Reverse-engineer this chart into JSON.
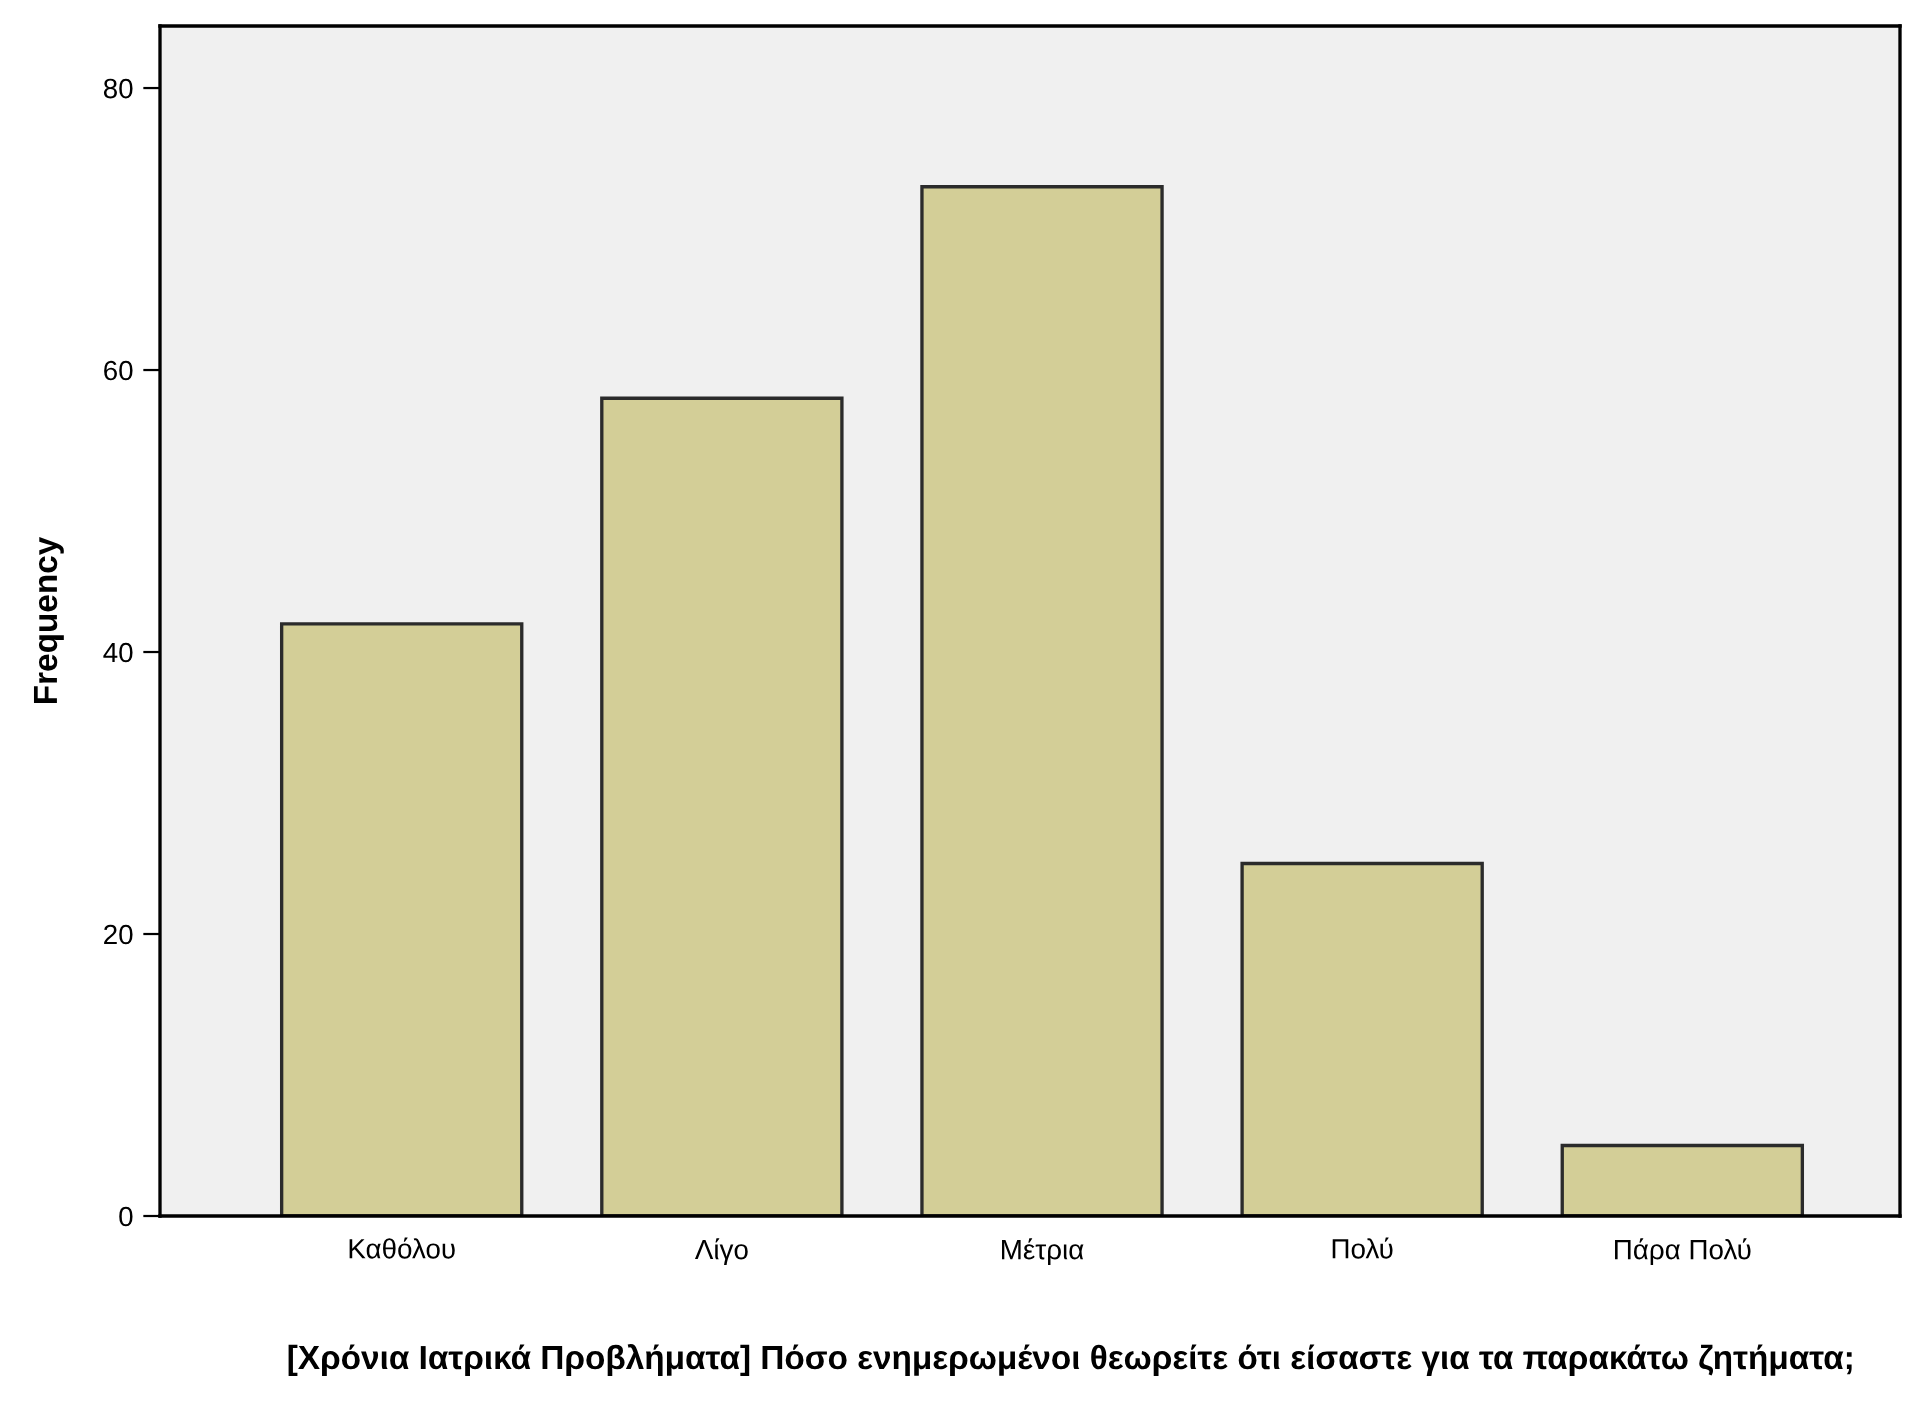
{
  "chart_data": {
    "type": "bar",
    "xlabel": "[Χρόνια Ιατρικά Προβλήματα] Πόσο ενημερωμένοι θεωρείτε ότι είσαστε για τα παρακάτω ζητήματα;",
    "ylabel": "Frequency",
    "categories": [
      "Καθόλου",
      "Λίγο",
      "Μέτρια",
      "Πολύ",
      "Πάρα Πολύ"
    ],
    "values": [
      42,
      58,
      73,
      25,
      5
    ],
    "color": "#d3ce97",
    "ylim": [
      0,
      84.4
    ],
    "yticks": [
      0,
      20,
      40,
      60,
      80
    ],
    "grid": false,
    "legend": false
  }
}
